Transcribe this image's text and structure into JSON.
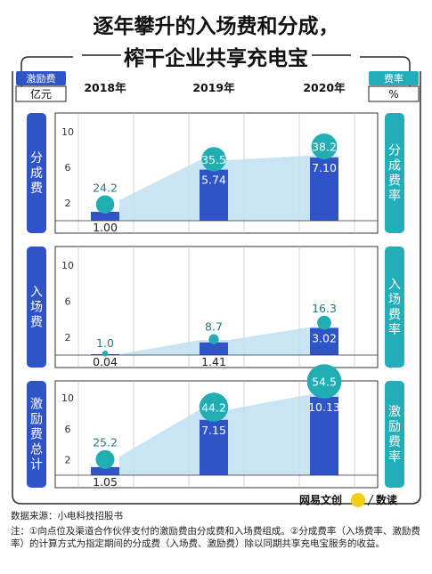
{
  "title_line1": "逐年攀升的入场费和分成，",
  "title_line2": "榨干企业共享充电宝",
  "left_unit_label": "激励费",
  "left_unit": "亿元",
  "right_unit_label": "费率",
  "right_unit": "%",
  "years": [
    "2018年",
    "2019年",
    "2020年"
  ],
  "y_ticks": [
    "10",
    "6",
    "2"
  ],
  "source": "数据来源：小电科技招股书",
  "note": "注：①向点位及渠道合作伙伴支付的激励费由分成费和入场费组成。②分成费率（入场费率、激励费率）的计算方式为指定期间的分成费（入场费、激励费）除以同期共享充电宝服务的收益。",
  "brand_1": "网易文创",
  "brand_2": "数读",
  "colors": {
    "bar": "#2f54c8",
    "bubble": "#20aeb3",
    "area": "#bfe0f2",
    "left_tab": "#2f54c8",
    "right_tab": "#22aeb8",
    "frame": "#2b2b2b"
  },
  "chart_data": [
    {
      "type": "bar",
      "left_label": "分成费",
      "right_label": "分成费率",
      "categories": [
        "2018年",
        "2019年",
        "2020年"
      ],
      "values": [
        1.0,
        5.74,
        7.1
      ],
      "value_labels": [
        "1.00",
        "5.74",
        "7.10"
      ],
      "rate_values": [
        24.2,
        35.5,
        38.2
      ],
      "rate_labels": [
        "24.2",
        "35.5",
        "38.2"
      ],
      "ylim": [
        0,
        11.5
      ],
      "y_ticks": [
        2,
        6,
        10
      ]
    },
    {
      "type": "bar",
      "left_label": "入场费",
      "right_label": "入场费率",
      "categories": [
        "2018年",
        "2019年",
        "2020年"
      ],
      "values": [
        0.04,
        1.41,
        3.02
      ],
      "value_labels": [
        "0.04",
        "1.41",
        "3.02"
      ],
      "rate_values": [
        1.0,
        8.7,
        16.3
      ],
      "rate_labels": [
        "1.0",
        "8.7",
        "16.3"
      ],
      "ylim": [
        0,
        11.5
      ],
      "y_ticks": [
        2,
        6,
        10
      ]
    },
    {
      "type": "bar",
      "left_label": "激励费总计",
      "right_label": "激励费率",
      "categories": [
        "2018年",
        "2019年",
        "2020年"
      ],
      "values": [
        1.05,
        7.15,
        10.13
      ],
      "value_labels": [
        "1.05",
        "7.15",
        "10.13"
      ],
      "rate_values": [
        25.2,
        44.2,
        54.5
      ],
      "rate_labels": [
        "25.2",
        "44.2",
        "54.5"
      ],
      "ylim": [
        0,
        11.5
      ],
      "y_ticks": [
        2,
        6,
        10
      ]
    }
  ]
}
